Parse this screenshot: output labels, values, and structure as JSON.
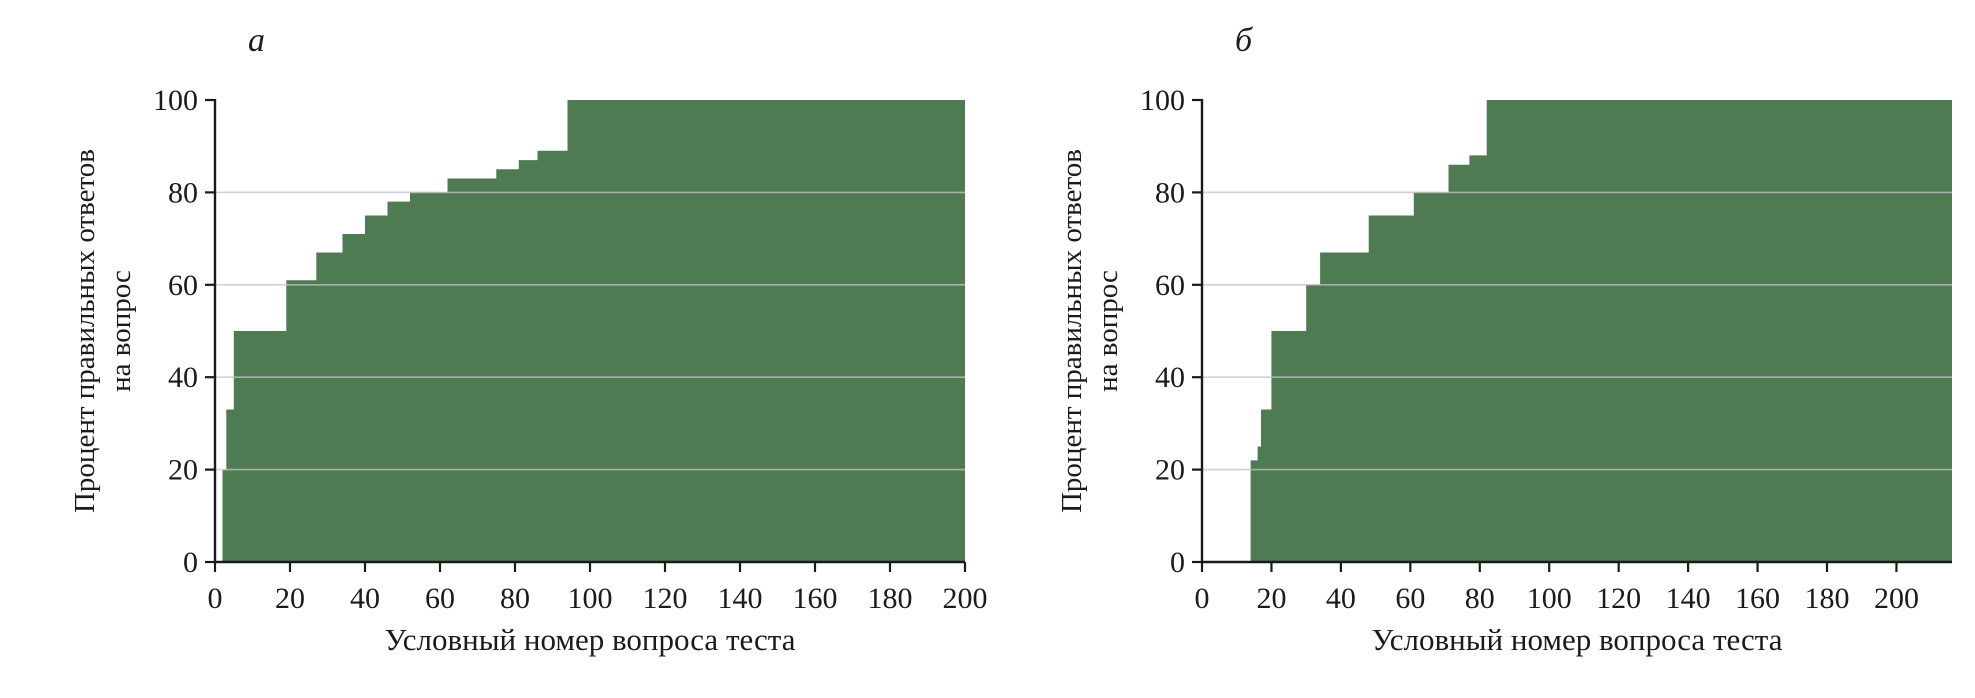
{
  "page": {
    "background": "#ffffff"
  },
  "chart_data": [
    {
      "type": "area",
      "panel_label": "а",
      "xlabel": "Условный номер вопроса теста",
      "ylabel_lines": [
        "Процент правильных ответов",
        "на вопрос"
      ],
      "xlim": [
        0,
        200
      ],
      "ylim": [
        0,
        100
      ],
      "xticks": [
        0,
        20,
        40,
        60,
        80,
        100,
        120,
        140,
        160,
        180,
        200
      ],
      "yticks": [
        0,
        20,
        40,
        60,
        80,
        100
      ],
      "gridlines": [
        20,
        40,
        60,
        80
      ],
      "fill_color": "#4e7b52",
      "grid_color": "#c4c4c4",
      "axis_color": "#1a1a1a",
      "legend": "none",
      "steps": [
        [
          2,
          20
        ],
        [
          3,
          33
        ],
        [
          5,
          50
        ],
        [
          19,
          61
        ],
        [
          27,
          67
        ],
        [
          34,
          71
        ],
        [
          40,
          75
        ],
        [
          46,
          78
        ],
        [
          52,
          80
        ],
        [
          62,
          83
        ],
        [
          75,
          85
        ],
        [
          81,
          87
        ],
        [
          86,
          89
        ],
        [
          94,
          100
        ]
      ]
    },
    {
      "type": "area",
      "panel_label": "б",
      "xlabel": "Условный номер вопроса теста",
      "ylabel_lines": [
        "Процент правильных ответов",
        "на вопрос"
      ],
      "xlim": [
        0,
        216
      ],
      "ylim": [
        0,
        100
      ],
      "xticks": [
        0,
        20,
        40,
        60,
        80,
        100,
        120,
        140,
        160,
        180,
        200
      ],
      "yticks": [
        0,
        20,
        40,
        60,
        80,
        100
      ],
      "gridlines": [
        20,
        40,
        60,
        80
      ],
      "fill_color": "#4e7b52",
      "grid_color": "#c4c4c4",
      "axis_color": "#1a1a1a",
      "legend": "none",
      "steps": [
        [
          14,
          22
        ],
        [
          16,
          25
        ],
        [
          17,
          33
        ],
        [
          20,
          50
        ],
        [
          30,
          60
        ],
        [
          34,
          67
        ],
        [
          48,
          75
        ],
        [
          61,
          80
        ],
        [
          71,
          86
        ],
        [
          77,
          88
        ],
        [
          82,
          100
        ]
      ]
    }
  ]
}
